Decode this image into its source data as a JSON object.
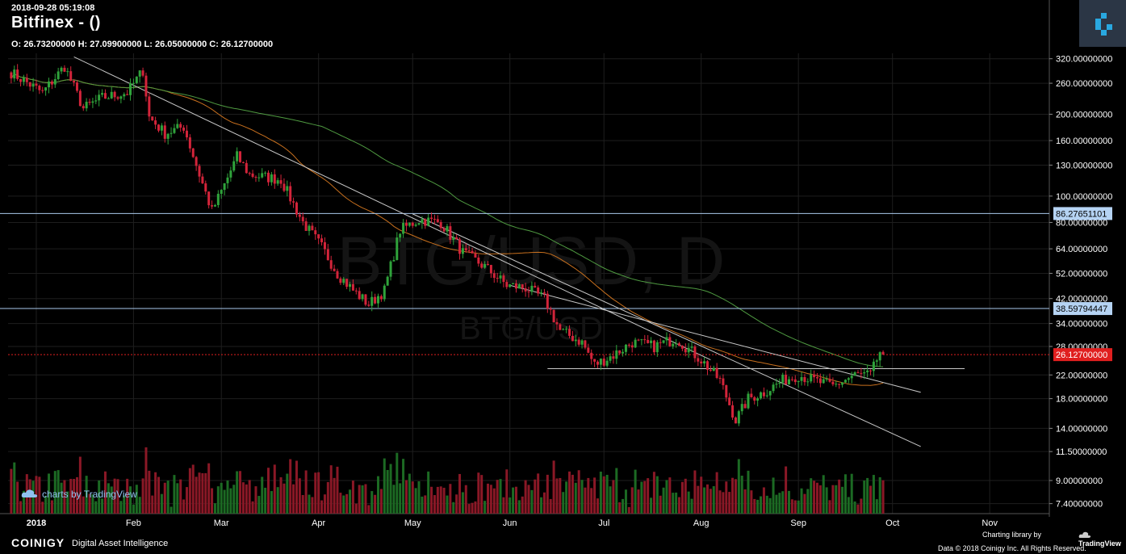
{
  "header": {
    "timestamp": "2018-09-28 05:19:08",
    "title": "Bitfinex -  ()",
    "ohlc_text": "O: 26.73200000 H: 27.09900000 L: 26.05000000 C: 26.12700000"
  },
  "watermark": {
    "main": "BTG/USD, D",
    "sub": "BTG/USD"
  },
  "branding": {
    "tv_link": "charts by TradingView",
    "coinigy": "COINIGY",
    "coinigy_tagline": "Digital Asset Intelligence",
    "charting_library": "Charting library by",
    "tradingview": "TradingView",
    "data_credit": "Data © 2018   Coinigy Inc. All Rights Reserved."
  },
  "colors": {
    "up": "#2fa33b",
    "down": "#d3243a",
    "ma_short": "#c8701e",
    "ma_long": "#4f9a41",
    "trendline": "#c9c9c9",
    "hline": "#a9c8ec",
    "last_price": "#e01f1f"
  },
  "chart_data": {
    "type": "candlestick",
    "symbol": "BTG/USD",
    "interval": "D",
    "scale": "log",
    "ylim": [
      6.8,
      335
    ],
    "x_start": "2017-12-23",
    "x_end": "2018-11-20",
    "x_tick_labels": [
      {
        "label": "2018",
        "date": "2018-01-01"
      },
      {
        "label": "Feb",
        "date": "2018-02-01"
      },
      {
        "label": "Mar",
        "date": "2018-03-01"
      },
      {
        "label": "Apr",
        "date": "2018-04-01"
      },
      {
        "label": "May",
        "date": "2018-05-01"
      },
      {
        "label": "Jun",
        "date": "2018-06-01"
      },
      {
        "label": "Jul",
        "date": "2018-07-01"
      },
      {
        "label": "Aug",
        "date": "2018-08-01"
      },
      {
        "label": "Sep",
        "date": "2018-09-01"
      },
      {
        "label": "Oct",
        "date": "2018-10-01"
      },
      {
        "label": "Nov",
        "date": "2018-11-01"
      }
    ],
    "y_ticks": [
      {
        "label": "320.00000000",
        "value": 320
      },
      {
        "label": "260.00000000",
        "value": 260
      },
      {
        "label": "200.00000000",
        "value": 200
      },
      {
        "label": "160.00000000",
        "value": 160
      },
      {
        "label": "130.00000000",
        "value": 130
      },
      {
        "label": "100.00000000",
        "value": 100
      },
      {
        "label": "80.00000000",
        "value": 80
      },
      {
        "label": "64.00000000",
        "value": 64
      },
      {
        "label": "52.00000000",
        "value": 52
      },
      {
        "label": "42.00000000",
        "value": 42
      },
      {
        "label": "34.00000000",
        "value": 34
      },
      {
        "label": "28.00000000",
        "value": 28
      },
      {
        "label": "22.00000000",
        "value": 22
      },
      {
        "label": "18.00000000",
        "value": 18
      },
      {
        "label": "14.00000000",
        "value": 14
      },
      {
        "label": "11.50000000",
        "value": 11.5
      },
      {
        "label": "9.00000000",
        "value": 9
      },
      {
        "label": "7.40000000",
        "value": 7.4
      }
    ],
    "price_markers": [
      {
        "label": "86.27651101",
        "value": 86.27651101,
        "kind": "hline"
      },
      {
        "label": "38.59794447",
        "value": 38.59794447,
        "kind": "hline"
      },
      {
        "label": "26.12700000",
        "value": 26.127,
        "kind": "last"
      }
    ],
    "anchors": [
      {
        "date": "2017-12-24",
        "close": 285
      },
      {
        "date": "2018-01-03",
        "close": 240
      },
      {
        "date": "2018-01-10",
        "close": 300
      },
      {
        "date": "2018-01-16",
        "close": 210
      },
      {
        "date": "2018-01-22",
        "close": 230
      },
      {
        "date": "2018-01-30",
        "close": 240
      },
      {
        "date": "2018-02-04",
        "close": 290
      },
      {
        "date": "2018-02-06",
        "close": 195
      },
      {
        "date": "2018-02-11",
        "close": 170
      },
      {
        "date": "2018-02-17",
        "close": 180
      },
      {
        "date": "2018-02-22",
        "close": 120
      },
      {
        "date": "2018-02-26",
        "close": 88
      },
      {
        "date": "2018-03-02",
        "close": 110
      },
      {
        "date": "2018-03-06",
        "close": 140
      },
      {
        "date": "2018-03-10",
        "close": 120
      },
      {
        "date": "2018-03-20",
        "close": 115
      },
      {
        "date": "2018-03-27",
        "close": 80
      },
      {
        "date": "2018-04-02",
        "close": 65
      },
      {
        "date": "2018-04-07",
        "close": 52
      },
      {
        "date": "2018-04-12",
        "close": 45
      },
      {
        "date": "2018-04-17",
        "close": 40
      },
      {
        "date": "2018-04-22",
        "close": 45
      },
      {
        "date": "2018-04-27",
        "close": 75
      },
      {
        "date": "2018-05-03",
        "close": 82
      },
      {
        "date": "2018-05-10",
        "close": 80
      },
      {
        "date": "2018-05-17",
        "close": 62
      },
      {
        "date": "2018-05-24",
        "close": 55
      },
      {
        "date": "2018-05-31",
        "close": 47
      },
      {
        "date": "2018-06-06",
        "close": 46
      },
      {
        "date": "2018-06-12",
        "close": 42
      },
      {
        "date": "2018-06-17",
        "close": 32
      },
      {
        "date": "2018-06-24",
        "close": 29
      },
      {
        "date": "2018-06-28",
        "close": 24
      },
      {
        "date": "2018-07-04",
        "close": 26
      },
      {
        "date": "2018-07-10",
        "close": 29
      },
      {
        "date": "2018-07-17",
        "close": 28
      },
      {
        "date": "2018-07-24",
        "close": 30
      },
      {
        "date": "2018-08-01",
        "close": 25
      },
      {
        "date": "2018-08-07",
        "close": 21
      },
      {
        "date": "2018-08-12",
        "close": 15
      },
      {
        "date": "2018-08-16",
        "close": 18
      },
      {
        "date": "2018-08-21",
        "close": 19
      },
      {
        "date": "2018-08-27",
        "close": 21
      },
      {
        "date": "2018-09-01",
        "close": 22
      },
      {
        "date": "2018-09-06",
        "close": 21
      },
      {
        "date": "2018-09-12",
        "close": 20
      },
      {
        "date": "2018-09-19",
        "close": 22
      },
      {
        "date": "2018-09-24",
        "close": 22
      },
      {
        "date": "2018-09-27",
        "close": 26.7
      },
      {
        "date": "2018-09-28",
        "close": 26.127
      }
    ],
    "trendlines": [
      {
        "d1": "2018-01-13",
        "p1": 325,
        "d2": "2018-08-04",
        "p2": 25
      },
      {
        "d1": "2018-05-01",
        "p1": 86,
        "d2": "2018-10-10",
        "p2": 12
      },
      {
        "d1": "2018-06-01",
        "p1": 47,
        "d2": "2018-10-10",
        "p2": 19
      },
      {
        "d1": "2018-06-13",
        "p1": 23.2,
        "d2": "2018-10-24",
        "p2": 23.2
      }
    ],
    "moving_averages": [
      {
        "period": 50,
        "color_key": "ma_short"
      },
      {
        "period": 100,
        "color_key": "ma_long"
      }
    ]
  }
}
